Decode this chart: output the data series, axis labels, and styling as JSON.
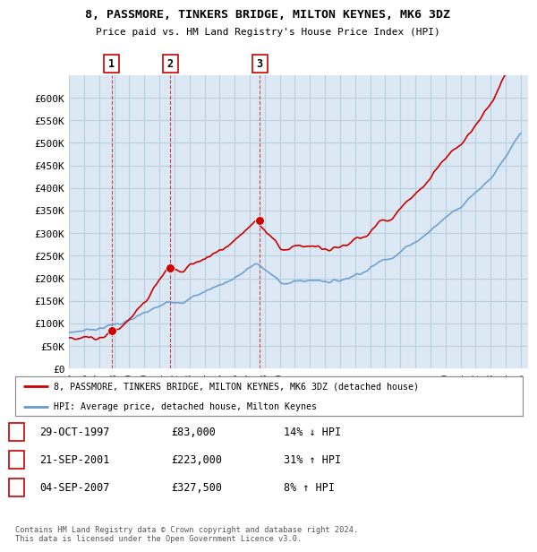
{
  "title": "8, PASSMORE, TINKERS BRIDGE, MILTON KEYNES, MK6 3DZ",
  "subtitle": "Price paid vs. HM Land Registry's House Price Index (HPI)",
  "background_color": "#ffffff",
  "chart_bg_color": "#dce9f5",
  "grid_color": "#b8cfe0",
  "hpi_color": "#6699cc",
  "price_color": "#cc0000",
  "dashed_color": "#cc0000",
  "ylim": [
    0,
    650000
  ],
  "yticks": [
    0,
    50000,
    100000,
    150000,
    200000,
    250000,
    300000,
    350000,
    400000,
    450000,
    500000,
    550000,
    600000
  ],
  "ytick_labels": [
    "£0",
    "£50K",
    "£100K",
    "£150K",
    "£200K",
    "£250K",
    "£300K",
    "£350K",
    "£400K",
    "£450K",
    "£500K",
    "£550K",
    "£600K"
  ],
  "sales": [
    {
      "label": "1",
      "date_num": 1997.83,
      "price": 83000
    },
    {
      "label": "2",
      "date_num": 2001.72,
      "price": 223000
    },
    {
      "label": "3",
      "date_num": 2007.67,
      "price": 327500
    }
  ],
  "xlim_start": 1995,
  "xlim_end": 2025.5,
  "legend_line1": "8, PASSMORE, TINKERS BRIDGE, MILTON KEYNES, MK6 3DZ (detached house)",
  "legend_line2": "HPI: Average price, detached house, Milton Keynes",
  "table_rows": [
    {
      "num": "1",
      "date": "29-OCT-1997",
      "price": "£83,000",
      "hpi": "14% ↓ HPI"
    },
    {
      "num": "2",
      "date": "21-SEP-2001",
      "price": "£223,000",
      "hpi": "31% ↑ HPI"
    },
    {
      "num": "3",
      "date": "04-SEP-2007",
      "price": "£327,500",
      "hpi": "8% ↑ HPI"
    }
  ],
  "footer": "Contains HM Land Registry data © Crown copyright and database right 2024.\nThis data is licensed under the Open Government Licence v3.0."
}
